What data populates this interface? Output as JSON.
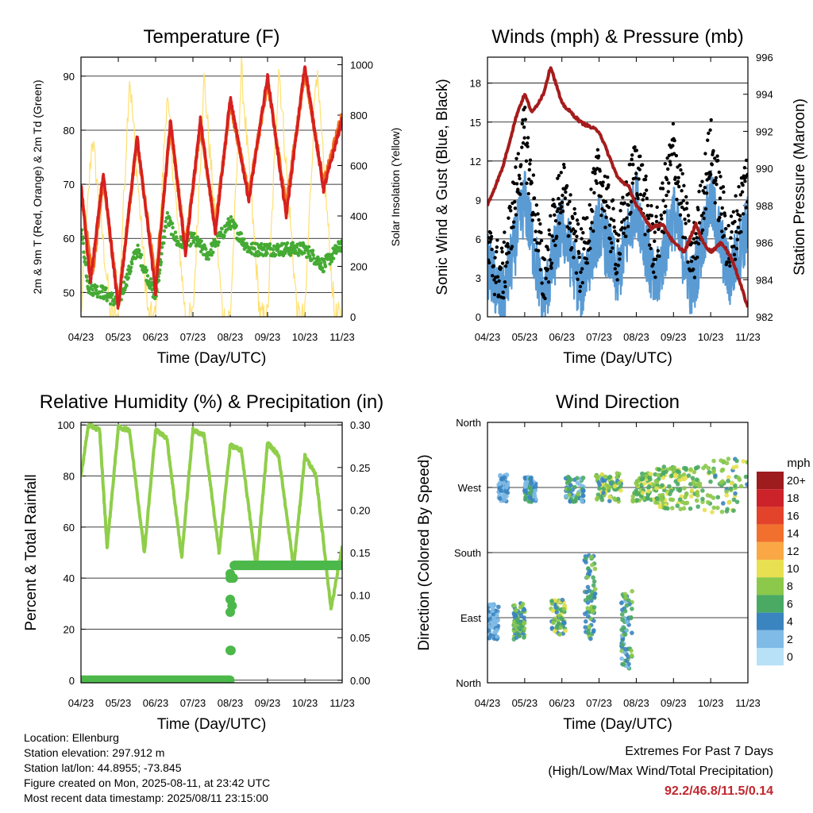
{
  "colors": {
    "temp_2m": "#d62020",
    "temp_9m": "#f07020",
    "dewpoint": "#44aa33",
    "insolation": "#ffe070",
    "wind_speed": "#5a9bd4",
    "wind_gust": "#000000",
    "pressure": "#a51c1c",
    "humidity": "#8fce4a",
    "precip": "#4cb84a",
    "extremes": "#c0272d"
  },
  "panels": {
    "temperature": {
      "title": "Temperature (F)",
      "xlabel": "Time (Day/UTC)",
      "ylabel_left": "2m & 9m T (Red, Orange) & 2m Td (Green)",
      "ylabel_right": "Solar Insolation (Yellow)"
    },
    "winds": {
      "title": "Winds (mph) & Pressure (mb)",
      "xlabel": "Time (Day/UTC)",
      "ylabel_left": "Sonic Wind & Gust (Blue, Black)",
      "ylabel_right": "Station Pressure (Maroon)"
    },
    "humidity": {
      "title": "Relative Humidity (%) & Precipitation (in)",
      "xlabel": "Time (Day/UTC)",
      "ylabel_left": "Percent & Total Rainfall"
    },
    "direction": {
      "title": "Wind Direction",
      "xlabel": "Time (Day/UTC)",
      "ylabel_left": "Direction (Colored By Speed)",
      "legend_title": "mph",
      "legend_labels": [
        "20+",
        "18",
        "16",
        "14",
        "12",
        "10",
        "8",
        "6",
        "4",
        "2",
        "0"
      ],
      "legend_colors": [
        "#9e1b1e",
        "#cc2229",
        "#e3432b",
        "#f2702d",
        "#f9a845",
        "#e8e050",
        "#8cc84a",
        "#4aaa64",
        "#3a84c0",
        "#7fbbe6",
        "#b8e0f6"
      ]
    }
  },
  "chart_data": [
    {
      "type": "line",
      "title": "Temperature (F)",
      "xlabel": "Time (Day/UTC)",
      "ylabel": "2m & 9m T (Red, Orange) & 2m Td (Green)",
      "y2label": "Solar Insolation (Yellow)",
      "x_ticks": [
        "04/23",
        "05/23",
        "06/23",
        "07/23",
        "08/23",
        "09/23",
        "10/23",
        "11/23"
      ],
      "ylim": [
        45.5,
        93.5
      ],
      "y_ticks": [
        50,
        60,
        70,
        80,
        90
      ],
      "y2lim": [
        0,
        1030
      ],
      "y2_ticks": [
        0,
        200,
        400,
        600,
        800,
        1000
      ],
      "grid": true,
      "series": [
        {
          "name": "2m T",
          "axis": "left",
          "x": [
            0,
            0.25,
            0.6,
            1.0,
            1.5,
            2.0,
            2.4,
            2.8,
            3.2,
            3.6,
            4.0,
            4.5,
            5.0,
            5.5,
            6.0,
            6.5,
            7.0
          ],
          "values": [
            70,
            52,
            72,
            47,
            79,
            50,
            82,
            57,
            82,
            61,
            86,
            67,
            90,
            64,
            92,
            69,
            82
          ]
        },
        {
          "name": "9m T",
          "axis": "left",
          "x": [
            0,
            0.3,
            0.6,
            1.0,
            1.5,
            2.0,
            2.4,
            2.8,
            3.2,
            3.6,
            4.0,
            4.5,
            5.0,
            5.5,
            6.0,
            6.5,
            7.0
          ],
          "values": [
            69,
            53,
            71,
            48,
            78,
            52,
            81,
            58,
            81,
            62,
            85,
            68,
            89,
            66,
            91,
            70,
            83
          ]
        },
        {
          "name": "2m Td",
          "axis": "left",
          "x": [
            0,
            0.2,
            0.6,
            1.0,
            1.5,
            2.0,
            2.3,
            2.6,
            3.0,
            3.4,
            4.0,
            4.5,
            5.0,
            5.5,
            6.0,
            6.5,
            7.0
          ],
          "values": [
            62,
            51,
            50,
            48,
            58,
            49,
            64,
            59,
            60,
            57,
            63,
            58,
            58,
            58,
            58,
            55,
            59
          ]
        },
        {
          "name": "Solar Insolation",
          "axis": "right",
          "x": [
            0,
            0.3,
            0.8,
            1.0,
            1.3,
            1.8,
            2.0,
            2.3,
            2.8,
            3.0,
            3.3,
            3.8,
            4.0,
            4.3,
            4.8,
            5.0,
            5.3,
            5.8,
            6.0,
            6.3,
            6.8,
            7.0
          ],
          "values": [
            0,
            720,
            0,
            0,
            960,
            0,
            0,
            880,
            0,
            0,
            940,
            0,
            0,
            980,
            0,
            0,
            1000,
            0,
            0,
            1000,
            0,
            0
          ]
        }
      ]
    },
    {
      "type": "line",
      "title": "Winds (mph) & Pressure (mb)",
      "xlabel": "Time (Day/UTC)",
      "ylabel": "Sonic Wind & Gust (Blue, Black)",
      "y2label": "Station Pressure (Maroon)",
      "x_ticks": [
        "04/23",
        "05/23",
        "06/23",
        "07/23",
        "08/23",
        "09/23",
        "10/23",
        "11/23"
      ],
      "ylim": [
        0,
        20
      ],
      "y_ticks": [
        0,
        3,
        6,
        9,
        12,
        15,
        18
      ],
      "y2lim": [
        982,
        996
      ],
      "y2_ticks": [
        982,
        984,
        986,
        988,
        990,
        992,
        994,
        996
      ],
      "grid": true,
      "series": [
        {
          "name": "Wind",
          "axis": "left",
          "x": [
            0,
            0.4,
            1.0,
            1.5,
            2.0,
            2.5,
            3.0,
            3.5,
            4.0,
            4.5,
            5.0,
            5.5,
            6.0,
            6.5,
            7.0
          ],
          "values": [
            4,
            1,
            9,
            1,
            7,
            2,
            7,
            3,
            9,
            2,
            8,
            2,
            9,
            3,
            7
          ]
        },
        {
          "name": "Gust",
          "axis": "left",
          "x": [
            0,
            0.4,
            1.0,
            1.5,
            2.0,
            2.5,
            3.0,
            3.5,
            4.0,
            4.5,
            5.0,
            5.5,
            6.0,
            6.5,
            7.0
          ],
          "values": [
            5,
            3,
            14,
            3,
            10,
            4,
            11,
            5,
            12,
            5,
            13,
            4,
            13,
            5,
            11
          ]
        },
        {
          "name": "Station Pressure",
          "axis": "right",
          "x": [
            0,
            0.4,
            0.8,
            1.0,
            1.2,
            1.5,
            1.7,
            2.0,
            2.5,
            3.0,
            3.5,
            3.8,
            4.0,
            4.4,
            4.7,
            5.0,
            5.3,
            5.6,
            5.8,
            6.0,
            6.3,
            6.6,
            7.0
          ],
          "values": [
            988,
            990,
            993,
            994,
            993,
            994,
            995.5,
            993.5,
            992.5,
            992,
            989.5,
            989,
            988,
            986.8,
            987,
            986,
            985.5,
            987,
            986,
            985.5,
            986,
            985,
            982.5
          ]
        }
      ]
    },
    {
      "type": "line",
      "title": "Relative Humidity (%) & Precipitation (in)",
      "xlabel": "Time (Day/UTC)",
      "ylabel": "Percent & Total Rainfall",
      "x_ticks": [
        "04/23",
        "05/23",
        "06/23",
        "07/23",
        "08/23",
        "09/23",
        "10/23",
        "11/23"
      ],
      "ylim": [
        -1,
        101
      ],
      "y_ticks": [
        0,
        20,
        40,
        60,
        80,
        100
      ],
      "y2lim": [
        -0.003,
        0.303
      ],
      "y2_ticks": [
        0.0,
        0.05,
        0.1,
        0.15,
        0.2,
        0.25,
        0.3
      ],
      "grid": true,
      "series": [
        {
          "name": "Relative Humidity",
          "axis": "left",
          "x": [
            0,
            0.2,
            0.5,
            0.7,
            1.0,
            1.3,
            1.7,
            2.0,
            2.3,
            2.7,
            3.0,
            3.3,
            3.7,
            4.0,
            4.3,
            4.7,
            5.0,
            5.3,
            5.7,
            6.0,
            6.3,
            6.7,
            7.0
          ],
          "values": [
            80,
            100,
            98,
            52,
            99,
            98,
            50,
            98,
            95,
            48,
            98,
            96,
            50,
            92,
            90,
            44,
            93,
            88,
            44,
            88,
            80,
            28,
            52
          ]
        },
        {
          "name": "Total Precipitation",
          "axis": "right",
          "x": [
            0,
            4.0,
            4.02,
            4.04,
            4.06,
            4.08,
            4.1,
            7.0
          ],
          "values": [
            0,
            0,
            0.035,
            0.08,
            0.095,
            0.12,
            0.135,
            0.135
          ]
        }
      ]
    },
    {
      "type": "scatter",
      "title": "Wind Direction",
      "xlabel": "Time (Day/UTC)",
      "ylabel": "Direction (Colored By Speed)",
      "x_ticks": [
        "04/23",
        "05/23",
        "06/23",
        "07/23",
        "08/23",
        "09/23",
        "10/23",
        "11/23"
      ],
      "y_ticks": [
        "North",
        "East",
        "South",
        "West",
        "North"
      ],
      "ylim": [
        0,
        360
      ],
      "grid": true,
      "legend": {
        "title": "mph",
        "labels": [
          "20+",
          "18",
          "16",
          "14",
          "12",
          "10",
          "8",
          "6",
          "4",
          "2",
          "0"
        ],
        "placement": "right"
      },
      "clusters": [
        {
          "x": [
            0.0,
            0.3
          ],
          "y": [
            60,
            110
          ],
          "speed": [
            1,
            4
          ]
        },
        {
          "x": [
            0.3,
            0.55
          ],
          "y": [
            250,
            290
          ],
          "speed": [
            1,
            4
          ]
        },
        {
          "x": [
            0.7,
            1.0
          ],
          "y": [
            60,
            110
          ],
          "speed": [
            3,
            9
          ]
        },
        {
          "x": [
            1.0,
            1.3
          ],
          "y": [
            250,
            285
          ],
          "speed": [
            2,
            6
          ]
        },
        {
          "x": [
            1.7,
            2.1
          ],
          "y": [
            65,
            115
          ],
          "speed": [
            3,
            10
          ]
        },
        {
          "x": [
            2.1,
            2.6
          ],
          "y": [
            250,
            285
          ],
          "speed": [
            2,
            8
          ]
        },
        {
          "x": [
            2.6,
            2.9
          ],
          "y": [
            60,
            180
          ],
          "speed": [
            3,
            8
          ]
        },
        {
          "x": [
            2.9,
            3.6
          ],
          "y": [
            250,
            290
          ],
          "speed": [
            4,
            10
          ]
        },
        {
          "x": [
            3.6,
            3.9
          ],
          "y": [
            20,
            130
          ],
          "speed": [
            2,
            8
          ]
        },
        {
          "x": [
            3.9,
            4.5
          ],
          "y": [
            250,
            290
          ],
          "speed": [
            5,
            10
          ]
        },
        {
          "x": [
            4.5,
            5.0
          ],
          "y": [
            240,
            300
          ],
          "speed": [
            5,
            10
          ]
        },
        {
          "x": [
            5.0,
            5.8
          ],
          "y": [
            240,
            300
          ],
          "speed": [
            5,
            10
          ]
        },
        {
          "x": [
            5.8,
            7.0
          ],
          "y": [
            235,
            310
          ],
          "speed": [
            4,
            10
          ]
        }
      ]
    }
  ],
  "footer": {
    "location": "Location: Ellenburg",
    "elevation": "Station elevation: 297.912 m",
    "latlon": "Station lat/lon: 44.8955; -73.845",
    "created": "Figure created on Mon, 2025-08-11, at 23:42 UTC",
    "recent": "Most recent data timestamp: 2025/08/11 23:15:00",
    "extremes_title": "Extremes For Past 7 Days",
    "extremes_subtitle": "(High/Low/Max Wind/Total Precipitation)",
    "extremes_values": "92.2/46.8/11.5/0.14"
  }
}
